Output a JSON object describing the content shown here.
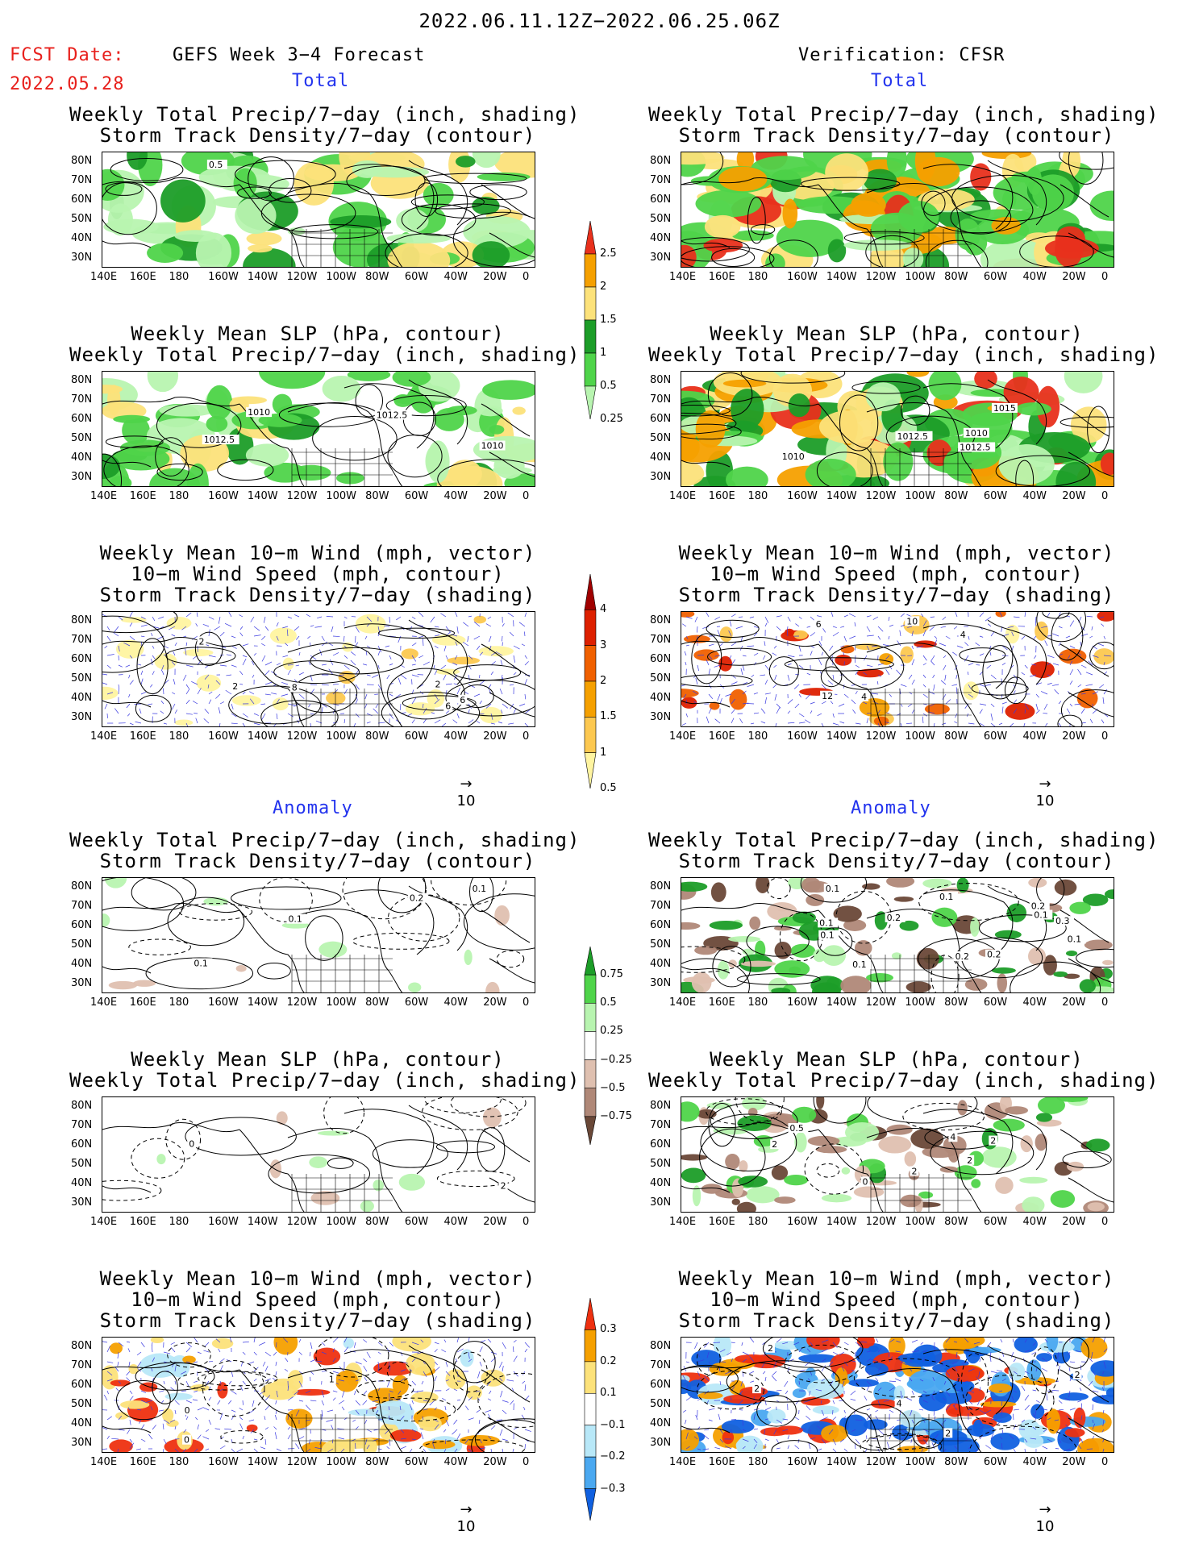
{
  "header": {
    "date_range": "2022.06.11.12Z−2022.06.25.06Z",
    "fcst_label": "FCST Date:",
    "fcst_date": "2022.05.28",
    "left_model": "GEFS Week 3−4 Forecast",
    "right_model": "Verification: CFSR"
  },
  "sections": {
    "total": "Total",
    "anomaly": "Anomaly"
  },
  "panel_titles": {
    "precip_storm": [
      "Weekly Total Precip/7−day (inch, shading)",
      "Storm Track Density/7−day (contour)"
    ],
    "slp_precip": [
      "Weekly Mean SLP (hPa, contour)",
      "Weekly Total Precip/7−day (inch, shading)"
    ],
    "wind_storm": [
      "Weekly Mean 10−m Wind (mph, vector)",
      "10−m Wind Speed (mph, contour)",
      "Storm Track Density/7−day (shading)"
    ]
  },
  "axes": {
    "lat_ticks": [
      "80N",
      "70N",
      "60N",
      "50N",
      "40N",
      "30N"
    ],
    "lon_ticks": [
      "140E",
      "160E",
      "180",
      "160W",
      "140W",
      "120W",
      "100W",
      "80W",
      "60W",
      "40W",
      "20W",
      "0"
    ]
  },
  "vector_reference": "10",
  "colorbars": {
    "precip_total": {
      "labels": [
        "2.5",
        "2",
        "1.5",
        "1",
        "0.5",
        "0.25"
      ],
      "colors": [
        "#e8301c",
        "#f5a000",
        "#fce27a",
        "#1c9d28",
        "#4fd44a",
        "#b8f4b0"
      ]
    },
    "storm_total": {
      "labels": [
        "4",
        "3",
        "2",
        "1.5",
        "1",
        "0.5"
      ],
      "colors": [
        "#a00000",
        "#dd2000",
        "#f06000",
        "#f5a000",
        "#fcc850",
        "#fff4a0"
      ]
    },
    "precip_anom": {
      "labels": [
        "0.75",
        "0.5",
        "0.25",
        "−0.25",
        "−0.5",
        "−0.75"
      ],
      "colors": [
        "#1c9d28",
        "#4fd44a",
        "#b8f4b0",
        "#ffffff",
        "#dfc0b0",
        "#b08878",
        "#6a4838"
      ]
    },
    "storm_anom": {
      "labels": [
        "0.3",
        "0.2",
        "0.1",
        "−0.1",
        "−0.2",
        "−0.3"
      ],
      "colors": [
        "#ee3010",
        "#f5a000",
        "#fce27a",
        "#ffffff",
        "#b8e8f8",
        "#4aa8f0",
        "#1060e0"
      ]
    }
  },
  "contour_labels": {
    "gefs_precip_total": [
      "0.5"
    ],
    "gefs_slp_total": [
      "1012.5",
      "1010",
      "1012.5",
      "1010"
    ],
    "cfsr_slp_total": [
      "1010",
      "1015",
      "1012.5",
      "1012.5",
      "1010"
    ],
    "gefs_wind_total": [
      "2",
      "6",
      "2",
      "6",
      "2",
      "8"
    ],
    "cfsr_wind_total": [
      "4",
      "12",
      "6",
      "4",
      "10"
    ],
    "gefs_precip_anom": [
      "0.1",
      "0.1",
      "0.1",
      "0.2"
    ],
    "cfsr_precip_anom": [
      "0.2",
      "0.1",
      "0.3",
      "0.1",
      "0.2",
      "0.1",
      "0.1",
      "0.1",
      "0.2",
      "0.1",
      "0.2",
      "0.1"
    ],
    "gefs_slp_anom": [
      "0",
      "2"
    ],
    "cfsr_slp_anom": [
      "4",
      "0",
      "2",
      "0.5",
      "2",
      "2",
      "2"
    ],
    "gefs_wind_anom": [
      "0",
      "1",
      "0"
    ],
    "cfsr_wind_anom": [
      "2",
      "2",
      "2",
      "2",
      "4"
    ]
  }
}
